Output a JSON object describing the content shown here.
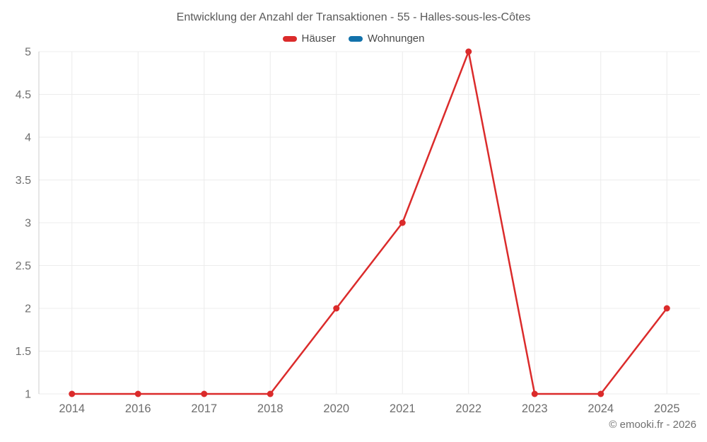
{
  "footer": {
    "copyright": "© emooki.fr - 2026"
  },
  "colors": {
    "haeuser_series": "#db2b2b",
    "wohnungen_series": "#1272ab",
    "gridline": "#ececec",
    "axis_line": "#cccccc",
    "title_text": "#595959",
    "legend_text": "#4a4a4a",
    "tick_text": "#6e6e6e",
    "copyright_text": "#707070"
  },
  "chart_data": {
    "type": "line",
    "title": "Entwicklung der Anzahl der Transaktionen - 55 - Halles-sous-les-Côtes",
    "xlabel": "",
    "ylabel": "",
    "categories": [
      "2014",
      "2016",
      "2017",
      "2018",
      "2020",
      "2021",
      "2022",
      "2023",
      "2024",
      "2025"
    ],
    "series": [
      {
        "name": "Häuser",
        "color": "#db2b2b",
        "values": [
          1,
          1,
          1,
          1,
          2,
          3,
          5,
          1,
          1,
          2
        ]
      },
      {
        "name": "Wohnungen",
        "color": "#1272ab",
        "values": []
      }
    ],
    "ylim": [
      1,
      5
    ],
    "yticks": [
      1,
      1.5,
      2,
      2.5,
      3,
      3.5,
      4,
      4.5,
      5
    ],
    "y_tick_labels": [
      "1",
      "1.5",
      "2",
      "2.5",
      "3",
      "3.5",
      "4",
      "4.5",
      "5"
    ],
    "grid": true,
    "legend_position": "top",
    "marker": "circle"
  }
}
